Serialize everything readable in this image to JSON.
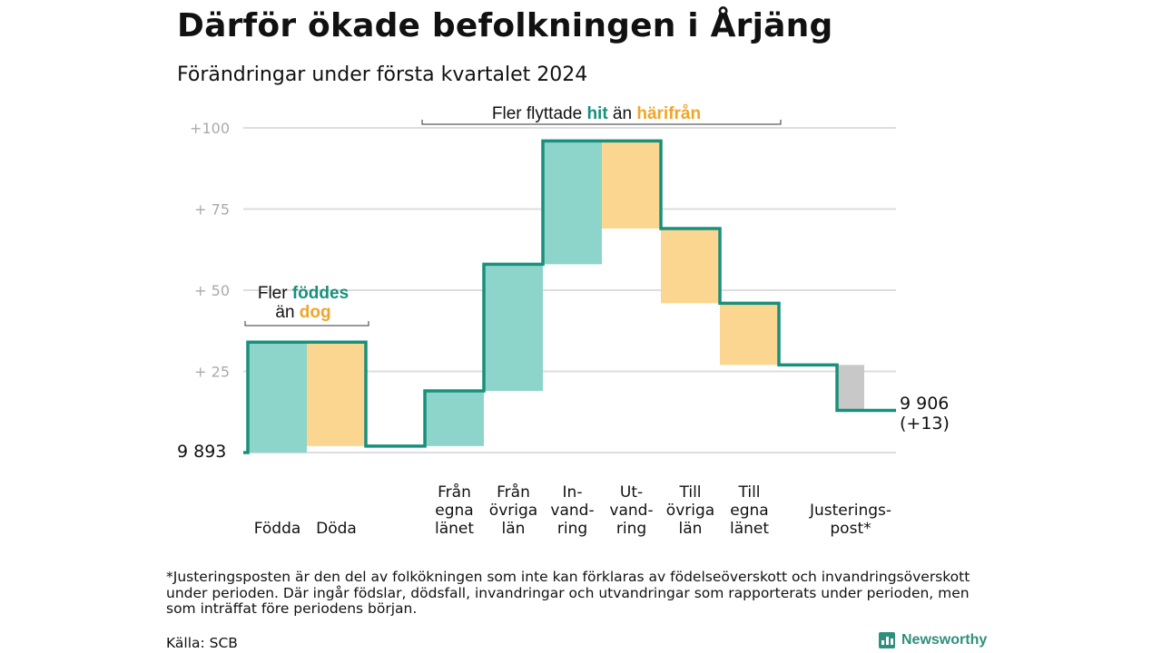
{
  "title": "Därför ökade befolkningen i Årjäng",
  "subtitle": "Förändringar under första kvartalet 2024",
  "chart_data": {
    "type": "waterfall",
    "start_value": 9893,
    "start_label": "9  893",
    "end_label_lines": [
      "9 906",
      "(+13)"
    ],
    "y_ticks": [
      {
        "value": 25,
        "label": "+  25"
      },
      {
        "value": 50,
        "label": "+  50"
      },
      {
        "value": 75,
        "label": "+  75"
      },
      {
        "value": 100,
        "label": "+100"
      }
    ],
    "ylim": [
      0,
      100
    ],
    "steps": [
      {
        "label_lines": [
          "Födda"
        ],
        "change": 34,
        "kind": "gain"
      },
      {
        "label_lines": [
          "Döda"
        ],
        "change": -32,
        "kind": "loss"
      },
      {
        "label_lines": [
          "Från",
          "egna",
          "länet"
        ],
        "change": 17,
        "kind": "gain"
      },
      {
        "label_lines": [
          "Från",
          "övriga",
          "län"
        ],
        "change": 39,
        "kind": "gain"
      },
      {
        "label_lines": [
          "In-",
          "vand-",
          "ring"
        ],
        "change": 38,
        "kind": "gain"
      },
      {
        "label_lines": [
          "Ut-",
          "vand-",
          "ring"
        ],
        "change": -27,
        "kind": "loss"
      },
      {
        "label_lines": [
          "Till",
          "övriga",
          "län"
        ],
        "change": -23,
        "kind": "loss"
      },
      {
        "label_lines": [
          "Till",
          "egna",
          "länet"
        ],
        "change": -19,
        "kind": "loss"
      },
      {
        "label_lines": [
          "Justerings-",
          "post*"
        ],
        "change": -14,
        "kind": "adjust"
      }
    ],
    "annotations": {
      "births": {
        "line1_pre": "Fler ",
        "line1_hl": "föddes",
        "line2_pre": "än ",
        "line2_hl": "dog"
      },
      "migration": {
        "pre": "Fler flyttade ",
        "hl1": "hit",
        "mid": " än ",
        "hl2": "härifrån"
      }
    },
    "colors": {
      "gain": "#8dd4cb",
      "loss": "#fbd690",
      "adjust": "#c8c8c8",
      "line": "#18907c",
      "gain_text": "#18907c",
      "loss_text": "#f0a52a",
      "grid": "#dddddd",
      "tick": "#aaaaaa"
    }
  },
  "footnote": "*Justeringsposten är den del av folkökningen som inte kan förklaras av födelseöverskott och invandringsöverskott under perioden. Där ingår födslar, dödsfall, invandringar och utvandringar som rapporterats under perioden, men som inträffat före periodens början.",
  "source": "Källa: SCB",
  "brand": "Newsworthy"
}
